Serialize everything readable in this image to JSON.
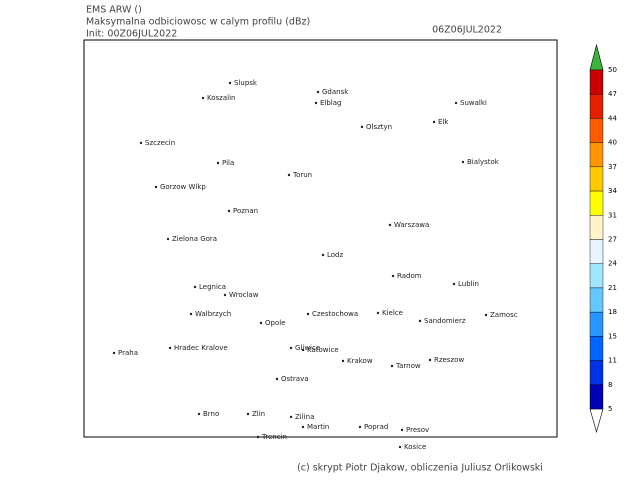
{
  "header": {
    "model": "EMS ARW ()",
    "title": "Maksymalna odbiciowosc w calym profilu (dBz)",
    "init": "Init: 00Z06JUL2022",
    "valid": "06Z06JUL2022"
  },
  "colorbar": {
    "ticks": [
      50,
      47,
      44,
      40,
      37,
      34,
      31,
      27,
      24,
      21,
      18,
      15,
      11,
      8,
      5
    ]
  },
  "cities": [
    "Slupsk",
    "Gdansk",
    "Koszalin",
    "Elblag",
    "Olsztyn",
    "Elk",
    "Suwalki",
    "Szczecin",
    "Bialystok",
    "Pila",
    "Torun",
    "Gorzow Wlkp",
    "Poznan",
    "Warszawa",
    "Zielona Gora",
    "Lodz",
    "Radom",
    "Legnica",
    "Lublin",
    "Wroclaw",
    "Walbrzych",
    "Opole",
    "Czestochowa",
    "Kielce",
    "Sandomierz",
    "Zamosc",
    "Praha",
    "Hradec Kralove",
    "Gliwice",
    "Katowice",
    "Krakow",
    "Tarnow",
    "Rzeszow",
    "Ostrava",
    "Brno",
    "Zlin",
    "Zilina",
    "Martin",
    "Poprad",
    "Presov",
    "Trencin",
    "Kosice"
  ],
  "footer": "(c) skrypt Piotr Djakow, obliczenia Juliusz Orlikowski"
}
